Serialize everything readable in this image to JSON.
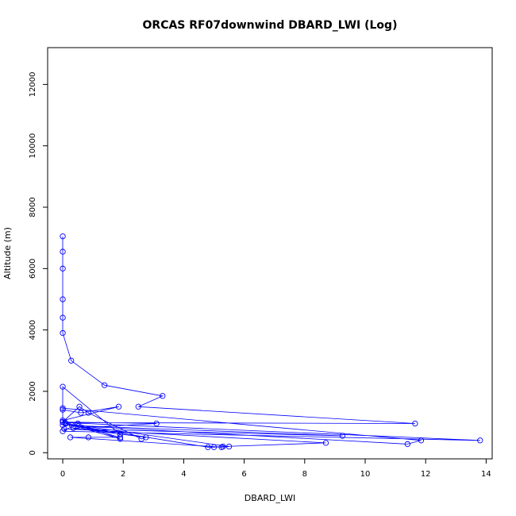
{
  "chart_data": {
    "type": "line",
    "title": "ORCAS RF07downwind DBARD_LWI (Log)",
    "xlabel": "DBARD_LWI",
    "ylabel": "Altitude (m)",
    "xlim": [
      -0.5,
      14.2
    ],
    "ylim": [
      -200,
      13200
    ],
    "xticks": [
      0,
      2,
      4,
      6,
      8,
      10,
      12,
      14
    ],
    "yticks": [
      0,
      2000,
      4000,
      6000,
      8000,
      10000,
      12000
    ],
    "grid": false,
    "legend": "none",
    "line_color": "#0000ff",
    "marker": "open-circle",
    "series": [
      {
        "x": [
          0.0,
          0.0,
          0.0,
          0.0,
          0.0,
          0.0,
          0.28,
          1.38,
          3.3,
          2.5,
          11.65,
          0.08,
          13.8,
          0.0,
          0.5,
          1.9,
          0.1,
          5.5,
          5.25,
          0.25,
          0.85,
          1.9,
          0.0,
          0.55,
          0.85,
          2.6,
          2.75,
          0.35,
          3.1,
          0.0,
          0.0,
          1.85,
          0.6,
          0.0,
          0.0,
          11.85,
          11.4,
          0.0,
          9.25,
          0.05,
          8.7,
          5.3,
          5.0,
          4.8,
          0.3,
          1.9,
          0.0,
          0.0
        ],
        "y": [
          7050,
          6550,
          6000,
          5000,
          4400,
          3900,
          3000,
          2200,
          1850,
          1500,
          950,
          980,
          400,
          700,
          950,
          450,
          950,
          200,
          180,
          500,
          500,
          500,
          1000,
          1500,
          1300,
          450,
          500,
          800,
          950,
          1000,
          1050,
          1500,
          1300,
          1400,
          1450,
          400,
          280,
          900,
          550,
          780,
          320,
          200,
          180,
          180,
          900,
          600,
          2150,
          1000
        ]
      }
    ]
  }
}
